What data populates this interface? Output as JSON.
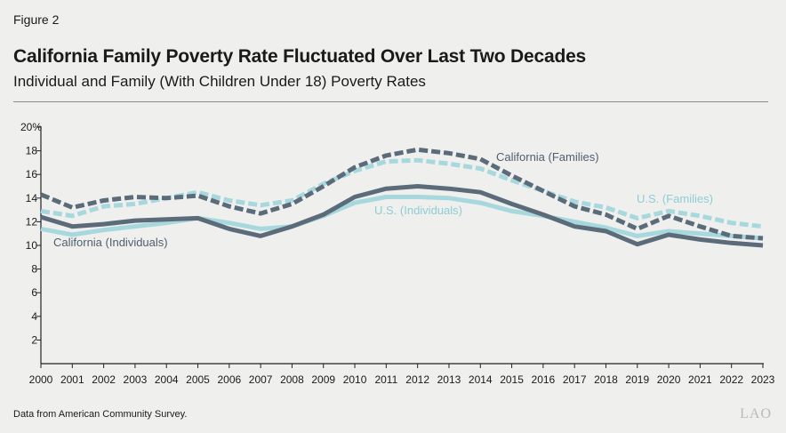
{
  "figure_label": "Figure 2",
  "logo_text": "LAO",
  "chart_data": {
    "type": "line",
    "title": "California Family Poverty Rate Fluctuated Over Last Two Decades",
    "subtitle": "Individual and Family (With Children Under 18) Poverty Rates",
    "source": "Data from American Community Survey.",
    "xlabel": "",
    "ylabel": "",
    "ylim": [
      0,
      20
    ],
    "yticks": [
      2,
      4,
      6,
      8,
      10,
      12,
      14,
      16,
      18,
      20
    ],
    "ytick_labels": [
      "2",
      "4",
      "6",
      "8",
      "10",
      "12",
      "14",
      "16",
      "18",
      "20%"
    ],
    "x": [
      "2000",
      "2001",
      "2002",
      "2003",
      "2004",
      "2005",
      "2006",
      "2007",
      "2008",
      "2009",
      "2010",
      "2011",
      "2012",
      "2013",
      "2014",
      "2015",
      "2016",
      "2017",
      "2018",
      "2019",
      "2020",
      "2021",
      "2022",
      "2023"
    ],
    "grid": false,
    "legend": "inline labels",
    "series": [
      {
        "name": "California (Families)",
        "label": "California (Families)",
        "color": "#5b6b79",
        "dash": true,
        "values": [
          14.3,
          13.2,
          13.8,
          14.1,
          14.0,
          14.2,
          13.3,
          12.7,
          13.5,
          15.0,
          16.6,
          17.6,
          18.1,
          17.8,
          17.3,
          15.9,
          14.6,
          13.3,
          12.6,
          11.4,
          12.5,
          11.6,
          10.8,
          10.6
        ]
      },
      {
        "name": "U.S. (Families)",
        "label": "U.S. (Families)",
        "color": "#a6d8dd",
        "dash": true,
        "values": [
          12.9,
          12.5,
          13.3,
          13.5,
          14.0,
          14.5,
          13.8,
          13.4,
          13.8,
          15.2,
          16.3,
          17.1,
          17.2,
          16.9,
          16.5,
          15.5,
          14.6,
          13.7,
          13.2,
          12.3,
          12.9,
          12.5,
          11.9,
          11.6
        ]
      },
      {
        "name": "California (Individuals)",
        "label": "California (Individuals)",
        "color": "#5b6b79",
        "dash": false,
        "values": [
          12.4,
          11.6,
          11.8,
          12.1,
          12.2,
          12.3,
          11.4,
          10.8,
          11.6,
          12.6,
          14.1,
          14.8,
          15.0,
          14.8,
          14.5,
          13.5,
          12.6,
          11.6,
          11.2,
          10.1,
          10.9,
          10.5,
          10.2,
          10.0
        ]
      },
      {
        "name": "U.S. (Individuals)",
        "label": "U.S. (Individuals)",
        "color": "#a6d8dd",
        "dash": false,
        "values": [
          11.4,
          10.9,
          11.3,
          11.6,
          11.9,
          12.3,
          11.9,
          11.4,
          11.6,
          12.5,
          13.6,
          14.1,
          14.1,
          14.0,
          13.6,
          12.9,
          12.5,
          12.0,
          11.5,
          10.8,
          11.2,
          11.0,
          10.8,
          10.6
        ]
      }
    ]
  }
}
